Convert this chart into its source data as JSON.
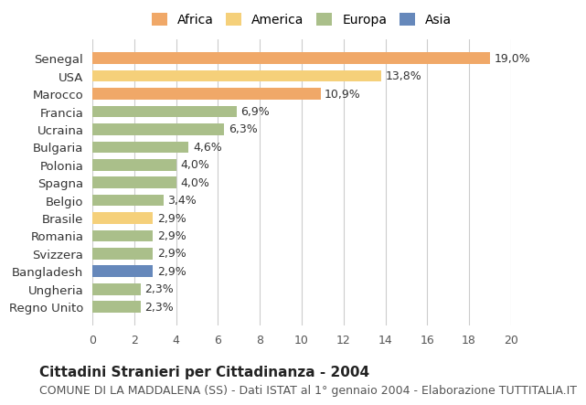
{
  "countries": [
    "Regno Unito",
    "Ungheria",
    "Bangladesh",
    "Svizzera",
    "Romania",
    "Brasile",
    "Belgio",
    "Spagna",
    "Polonia",
    "Bulgaria",
    "Ucraina",
    "Francia",
    "Marocco",
    "USA",
    "Senegal"
  ],
  "values": [
    2.3,
    2.3,
    2.9,
    2.9,
    2.9,
    2.9,
    3.4,
    4.0,
    4.0,
    4.6,
    6.3,
    6.9,
    10.9,
    13.8,
    19.0
  ],
  "labels": [
    "2,3%",
    "2,3%",
    "2,9%",
    "2,9%",
    "2,9%",
    "2,9%",
    "3,4%",
    "4,0%",
    "4,0%",
    "4,6%",
    "6,3%",
    "6,9%",
    "10,9%",
    "13,8%",
    "19,0%"
  ],
  "categories": [
    "Europa",
    "Europa",
    "Asia",
    "Europa",
    "Europa",
    "America",
    "Europa",
    "Europa",
    "Europa",
    "Europa",
    "Europa",
    "Europa",
    "Africa",
    "America",
    "Africa"
  ],
  "colors": {
    "Africa": "#F0A868",
    "America": "#F5D07A",
    "Europa": "#AABF8A",
    "Asia": "#6688BB"
  },
  "bar_colors": [
    "#AABF8A",
    "#AABF8A",
    "#6688BB",
    "#AABF8A",
    "#AABF8A",
    "#F5D07A",
    "#AABF8A",
    "#AABF8A",
    "#AABF8A",
    "#AABF8A",
    "#AABF8A",
    "#AABF8A",
    "#F0A868",
    "#F5D07A",
    "#F0A868"
  ],
  "legend_colors": {
    "Africa": "#F0A868",
    "America": "#F5D07A",
    "Europa": "#AABF8A",
    "Asia": "#6688BB"
  },
  "legend_order": [
    "Africa",
    "America",
    "Europa",
    "Asia"
  ],
  "title": "Cittadini Stranieri per Cittadinanza - 2004",
  "subtitle": "COMUNE DI LA MADDALENA (SS) - Dati ISTAT al 1° gennaio 2004 - Elaborazione TUTTITALIA.IT",
  "xlim": [
    0,
    20
  ],
  "xticks": [
    0,
    2,
    4,
    6,
    8,
    10,
    12,
    14,
    16,
    18,
    20
  ],
  "background_color": "#FFFFFF",
  "grid_color": "#CCCCCC",
  "bar_height": 0.65,
  "label_fontsize": 9,
  "title_fontsize": 11,
  "subtitle_fontsize": 9
}
